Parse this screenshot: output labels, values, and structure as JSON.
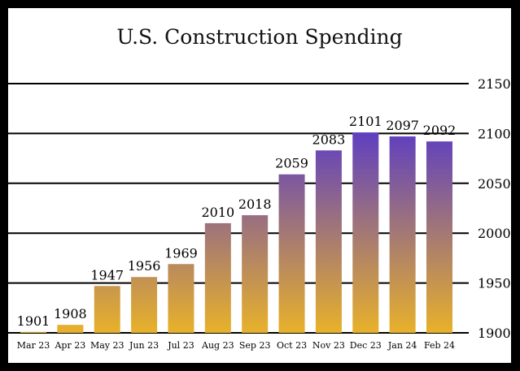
{
  "chart_data": {
    "type": "bar",
    "title": "U.S. Construction Spending",
    "xlabel": "",
    "ylabel": "",
    "categories": [
      "Mar 23",
      "Apr 23",
      "May 23",
      "Jun 23",
      "Jul 23",
      "Aug 23",
      "Sep 23",
      "Oct 23",
      "Nov 23",
      "Dec 23",
      "Jan 24",
      "Feb 24"
    ],
    "values": [
      1901,
      1908,
      1947,
      1956,
      1969,
      2010,
      2018,
      2059,
      2083,
      2101,
      2097,
      2092
    ],
    "data_labels": [
      "1901",
      "1908",
      "1947",
      "1956",
      "1969",
      "2010",
      "2018",
      "2059",
      "2083",
      "2101",
      "2097",
      "2092"
    ],
    "ylim": [
      1900,
      2150
    ],
    "y_ticks": [
      1900,
      1950,
      2000,
      2050,
      2100,
      2150
    ],
    "y_tick_labels": [
      "1900",
      "1950",
      "2000",
      "2050",
      "2100",
      "2150"
    ],
    "y_axis_side": "right",
    "grid": true,
    "legend": "none",
    "colors": {
      "low": "#e8b12a",
      "high": "#5b3cc4",
      "background": "#ffffff",
      "frame": "#000000",
      "gridline": "#000000"
    }
  }
}
